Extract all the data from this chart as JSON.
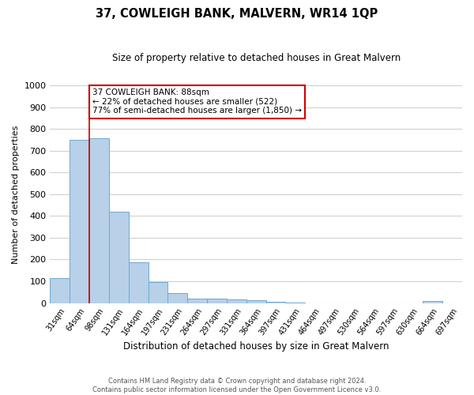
{
  "title": "37, COWLEIGH BANK, MALVERN, WR14 1QP",
  "subtitle": "Size of property relative to detached houses in Great Malvern",
  "xlabel": "Distribution of detached houses by size in Great Malvern",
  "ylabel": "Number of detached properties",
  "bar_color": "#b8d0e8",
  "bar_edge_color": "#6aaad4",
  "background_color": "#ffffff",
  "grid_color": "#d0d0d0",
  "categories": [
    "31sqm",
    "64sqm",
    "98sqm",
    "131sqm",
    "164sqm",
    "197sqm",
    "231sqm",
    "264sqm",
    "297sqm",
    "331sqm",
    "364sqm",
    "397sqm",
    "431sqm",
    "464sqm",
    "497sqm",
    "530sqm",
    "564sqm",
    "597sqm",
    "630sqm",
    "664sqm",
    "697sqm"
  ],
  "values": [
    113,
    748,
    757,
    420,
    187,
    97,
    45,
    22,
    22,
    15,
    13,
    5,
    2,
    0,
    0,
    0,
    0,
    0,
    0,
    8,
    0
  ],
  "ylim": [
    0,
    1000
  ],
  "yticks": [
    0,
    100,
    200,
    300,
    400,
    500,
    600,
    700,
    800,
    900,
    1000
  ],
  "property_line_x": 1.5,
  "property_line_color": "#cc0000",
  "annotation_text": "37 COWLEIGH BANK: 88sqm\n← 22% of detached houses are smaller (522)\n77% of semi-detached houses are larger (1,850) →",
  "annotation_box_color": "#ffffff",
  "annotation_box_edge": "#cc0000",
  "footnote": "Contains HM Land Registry data © Crown copyright and database right 2024.\nContains public sector information licensed under the Open Government Licence v3.0."
}
